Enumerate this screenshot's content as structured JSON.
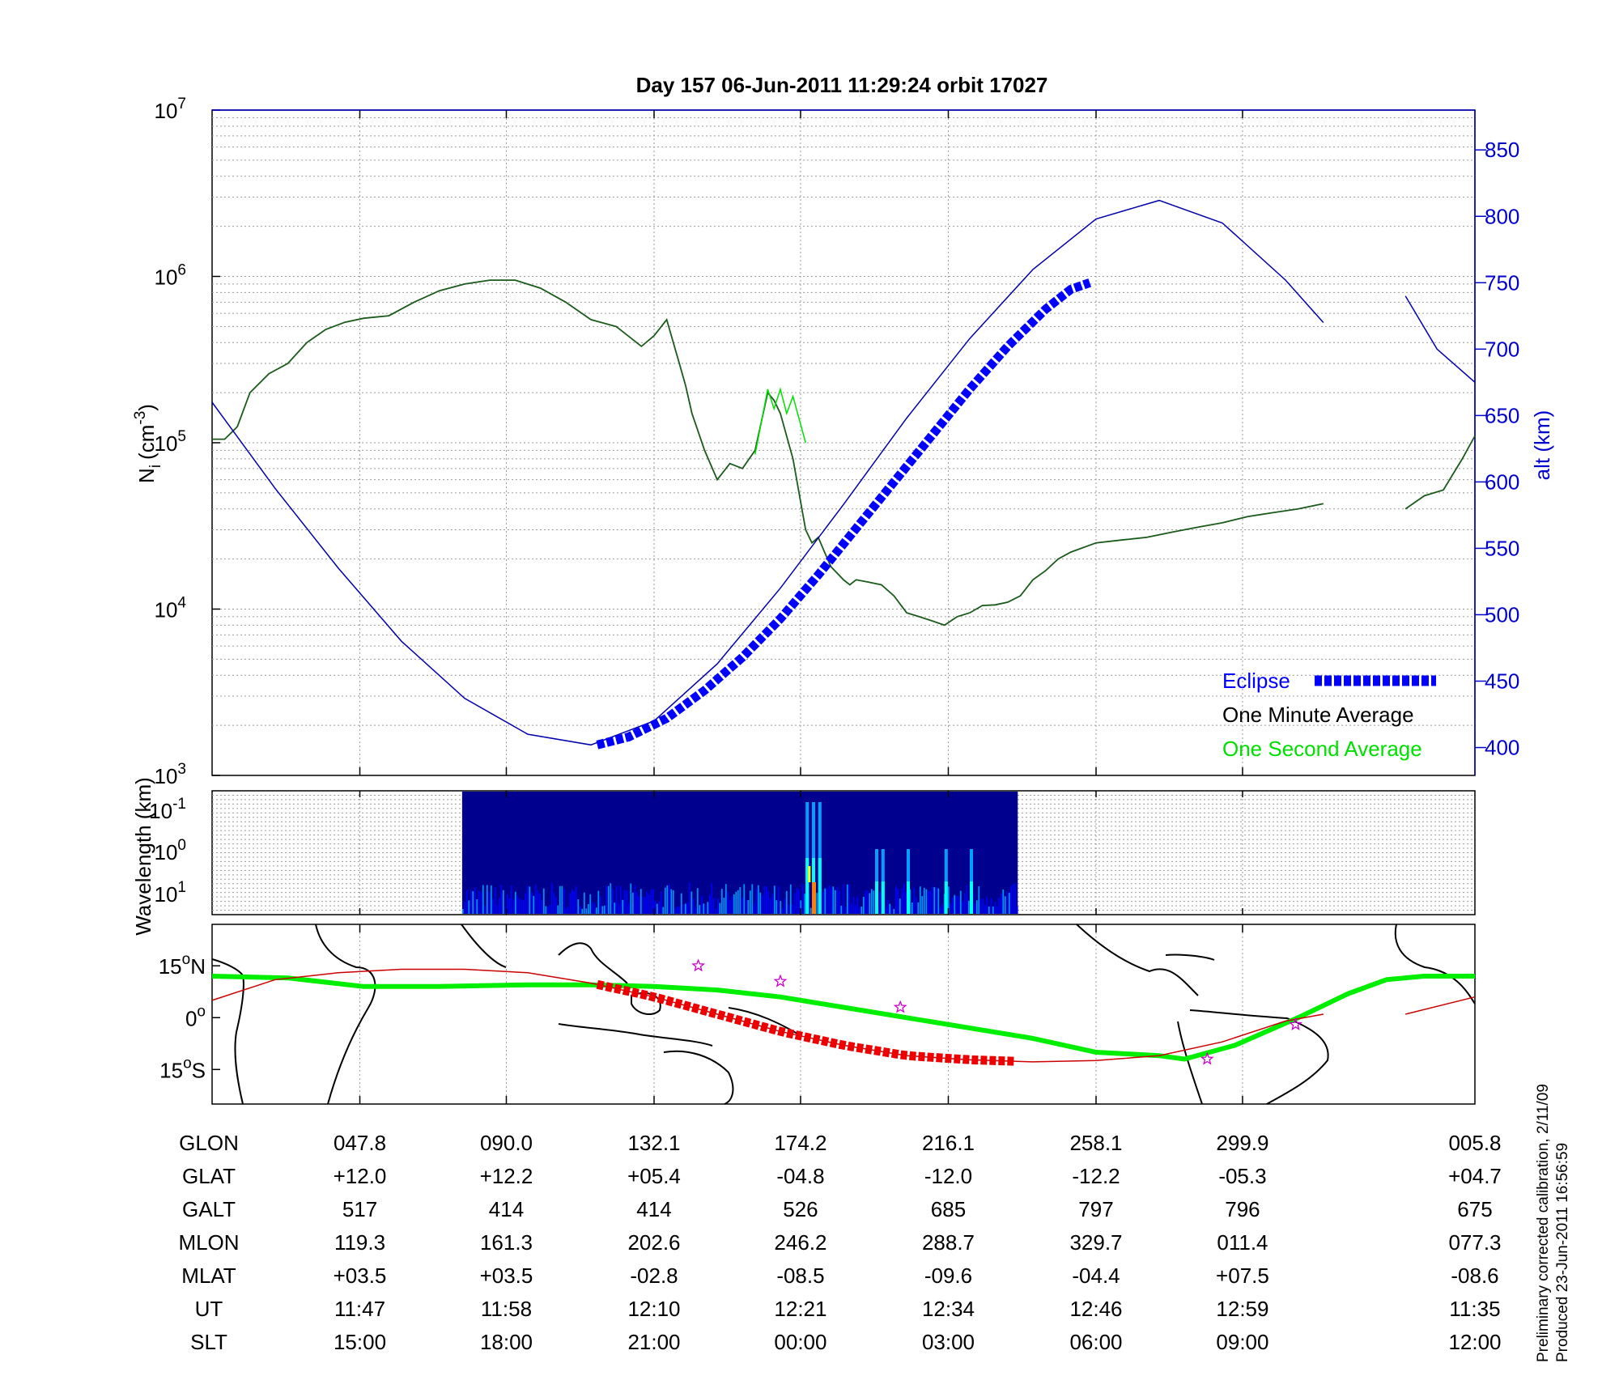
{
  "chart_data": [
    {
      "panel": "density",
      "type": "line",
      "title": "Day 157  06-Jun-2011 11:29:24   orbit 17027",
      "ylabel_main": "N",
      "ylabel_sub": "i",
      "ylabel_unit_open": "(cm",
      "ylabel_unit_exp": "-3",
      "ylabel_unit_close": ")",
      "y_scale": "log",
      "ylim": [
        1000,
        10000000
      ],
      "y_ticks": [
        {
          "base": "10",
          "exp": "3"
        },
        {
          "base": "10",
          "exp": "4"
        },
        {
          "base": "10",
          "exp": "5"
        },
        {
          "base": "10",
          "exp": "6"
        },
        {
          "base": "10",
          "exp": "7"
        }
      ],
      "y2label": "alt (km)",
      "y2lim": [
        379,
        880
      ],
      "y2_ticks": [
        "400",
        "450",
        "500",
        "550",
        "600",
        "650",
        "700",
        "750",
        "800",
        "850"
      ],
      "grid": true,
      "x_note": "x positions expressed as orbit fraction 0..1 (shared by all panels)",
      "series": [
        {
          "name": "One Minute Average",
          "color": "#000000",
          "x": [
            0.0,
            0.01,
            0.02,
            0.03,
            0.045,
            0.06,
            0.075,
            0.09,
            0.105,
            0.12,
            0.14,
            0.16,
            0.18,
            0.2,
            0.22,
            0.24,
            0.26,
            0.28,
            0.3,
            0.32,
            0.34,
            0.35,
            0.36,
            0.37,
            0.375,
            0.38,
            0.39,
            0.4,
            0.41,
            0.42,
            0.43,
            0.44,
            0.445,
            0.45,
            0.46,
            0.47,
            0.475,
            0.48,
            0.485,
            0.49,
            0.5,
            0.505,
            0.51,
            0.52,
            0.53,
            0.54,
            0.55,
            0.56,
            0.57,
            0.58,
            0.59,
            0.6,
            0.61,
            0.62,
            0.63,
            0.64,
            0.65,
            0.66,
            0.67,
            0.68,
            0.7,
            0.72,
            0.74,
            0.76,
            0.78,
            0.8,
            0.82,
            0.84,
            0.86,
            0.88
          ],
          "y": [
            105000,
            105000,
            125000,
            200000,
            260000,
            300000,
            400000,
            480000,
            530000,
            560000,
            580000,
            700000,
            820000,
            900000,
            950000,
            950000,
            850000,
            700000,
            550000,
            500000,
            380000,
            440000,
            550000,
            300000,
            220000,
            150000,
            90000,
            60000,
            75000,
            70000,
            90000,
            200000,
            180000,
            150000,
            80000,
            30000,
            25000,
            27000,
            22000,
            18000,
            15000,
            14000,
            15000,
            14500,
            14000,
            12000,
            9500,
            9000,
            8500,
            8000,
            9000,
            9500,
            10500,
            10600,
            11000,
            12000,
            15000,
            17000,
            20000,
            22000,
            25000,
            26000,
            27000,
            29000,
            31000,
            33000,
            36000,
            38000,
            40000,
            43000
          ]
        },
        {
          "name": "One Minute Average",
          "color": "#000000",
          "x": [
            0.945,
            0.96,
            0.975,
            0.99,
            1.0
          ],
          "y": [
            40000,
            48000,
            52000,
            80000,
            110000
          ]
        },
        {
          "name": "One Second Average",
          "color": "#00e000",
          "x": [
            0.43,
            0.44,
            0.445,
            0.45,
            0.455,
            0.46,
            0.47
          ],
          "y": [
            85000,
            210000,
            160000,
            210000,
            150000,
            190000,
            100000
          ]
        },
        {
          "name": "alt (km)",
          "axis": "y2",
          "color": "#0000aa",
          "x": [
            0.0,
            0.05,
            0.1,
            0.15,
            0.2,
            0.25,
            0.3,
            0.35,
            0.4,
            0.45,
            0.5,
            0.55,
            0.6,
            0.65,
            0.7,
            0.75,
            0.8,
            0.85,
            0.88
          ],
          "y": [
            660,
            595,
            535,
            480,
            437,
            410,
            402,
            420,
            463,
            520,
            583,
            648,
            708,
            760,
            798,
            812,
            795,
            752,
            720
          ]
        },
        {
          "name": "alt (km)",
          "axis": "y2",
          "color": "#0000aa",
          "x": [
            0.945,
            0.97,
            1.0
          ],
          "y": [
            740,
            700,
            675
          ]
        },
        {
          "name": "Eclipse",
          "axis": "y2",
          "color": "#0000ff",
          "x": [
            0.305,
            0.33,
            0.36,
            0.39,
            0.42,
            0.45,
            0.48,
            0.51,
            0.54,
            0.57,
            0.6,
            0.63,
            0.66,
            0.68,
            0.695
          ],
          "y": [
            402,
            408,
            422,
            443,
            468,
            497,
            530,
            565,
            600,
            635,
            670,
            702,
            730,
            745,
            750
          ]
        }
      ],
      "legend": {
        "position": "bottom-right",
        "items": [
          {
            "label": "Eclipse",
            "color": "#0000ff",
            "style": "thick-dashed"
          },
          {
            "label": "One Minute Average",
            "color": "#000000",
            "style": "text-only"
          },
          {
            "label": "One Second Average",
            "color": "#00e000",
            "style": "text-only"
          }
        ]
      }
    },
    {
      "panel": "spectrogram",
      "type": "heatmap",
      "ylabel": "Wavelength (km)",
      "y_ticks": [
        {
          "base": "10",
          "exp": "-1"
        },
        {
          "base": "10",
          "exp": "0"
        },
        {
          "base": "10",
          "exp": "1"
        }
      ],
      "data_extent_x": [
        0.198,
        0.638
      ],
      "colormap": [
        "#00008f",
        "#0000ff",
        "#00a0ff",
        "#00ffff",
        "#ffff00",
        "#ff8000"
      ],
      "bright_bands_x": [
        0.47,
        0.475,
        0.48,
        0.525,
        0.53,
        0.55,
        0.58,
        0.6
      ],
      "grid": true
    },
    {
      "panel": "map",
      "type": "line",
      "y_ticks": [
        {
          "num": "15",
          "deg": "o",
          "hem": "N",
          "lat": 15
        },
        {
          "num": "0",
          "deg": "o",
          "hem": "",
          "lat": 0
        },
        {
          "num": "15",
          "deg": "o",
          "hem": "S",
          "lat": -15
        }
      ],
      "ylim": [
        -25,
        27
      ],
      "series": [
        {
          "name": "magnetic equator",
          "color": "#00ee00",
          "x": [
            0.0,
            0.06,
            0.12,
            0.18,
            0.25,
            0.3,
            0.35,
            0.4,
            0.45,
            0.5,
            0.55,
            0.6,
            0.65,
            0.7,
            0.75,
            0.77,
            0.81,
            0.86,
            0.9,
            0.93,
            0.96,
            1.0
          ],
          "y": [
            12,
            11.5,
            9,
            9,
            9.5,
            9.5,
            9,
            8,
            6,
            3,
            0,
            -3,
            -6,
            -10,
            -11,
            -12,
            -8,
            0,
            7,
            11,
            12,
            12
          ]
        },
        {
          "name": "orbit track",
          "color": "#cc0000",
          "x": [
            0.0,
            0.05,
            0.1,
            0.15,
            0.2,
            0.25,
            0.3,
            0.35,
            0.4,
            0.45,
            0.5,
            0.55,
            0.6,
            0.65,
            0.7,
            0.75,
            0.8,
            0.85,
            0.88
          ],
          "y": [
            5,
            11,
            13,
            14,
            14,
            13,
            10,
            6,
            1,
            -4,
            -8,
            -11,
            -12.2,
            -12.8,
            -12.4,
            -11,
            -7,
            -1,
            1
          ],
          "thick_x": [
            0.305,
            0.638
          ]
        },
        {
          "name": "orbit track",
          "color": "#cc0000",
          "x": [
            0.945,
            1.0
          ],
          "y": [
            1,
            6
          ]
        }
      ],
      "markers": [
        {
          "x": 0.385,
          "y": 15,
          "symbol": "star",
          "color": "#cc00cc"
        },
        {
          "x": 0.45,
          "y": 10.5,
          "symbol": "star",
          "color": "#cc00cc"
        },
        {
          "x": 0.545,
          "y": 3,
          "symbol": "star",
          "color": "#cc00cc"
        },
        {
          "x": 0.788,
          "y": -12,
          "symbol": "star",
          "color": "#cc00cc"
        },
        {
          "x": 0.858,
          "y": -2,
          "symbol": "star",
          "color": "#cc00cc"
        }
      ]
    }
  ],
  "orbit_table": {
    "row_labels": [
      "GLON",
      "GLAT",
      "GALT",
      "MLON",
      "MLAT",
      "UT",
      "SLT"
    ],
    "columns_x": [
      0.117,
      0.233,
      0.35,
      0.466,
      0.583,
      0.7,
      0.816,
      1.0
    ],
    "rows": [
      [
        "047.8",
        "090.0",
        "132.1",
        "174.2",
        "216.1",
        "258.1",
        "299.9",
        "005.8"
      ],
      [
        "+12.0",
        "+12.2",
        "+05.4",
        "-04.8",
        "-12.0",
        "-12.2",
        "-05.3",
        "+04.7"
      ],
      [
        "517",
        "414",
        "414",
        "526",
        "685",
        "797",
        "796",
        "675"
      ],
      [
        "119.3",
        "161.3",
        "202.6",
        "246.2",
        "288.7",
        "329.7",
        "011.4",
        "077.3"
      ],
      [
        "+03.5",
        "+03.5",
        "-02.8",
        "-08.5",
        "-09.6",
        "-04.4",
        "+07.5",
        "-08.6"
      ],
      [
        "11:47",
        "11:58",
        "12:10",
        "12:21",
        "12:34",
        "12:46",
        "12:59",
        "11:35"
      ],
      [
        "15:00",
        "18:00",
        "21:00",
        "00:00",
        "03:00",
        "06:00",
        "09:00",
        "12:00"
      ]
    ]
  },
  "footnote": {
    "line1": "Preliminary corrected calibration, 2/11/09",
    "line2": "Produced 23-Jun-2011 16:56:59"
  }
}
